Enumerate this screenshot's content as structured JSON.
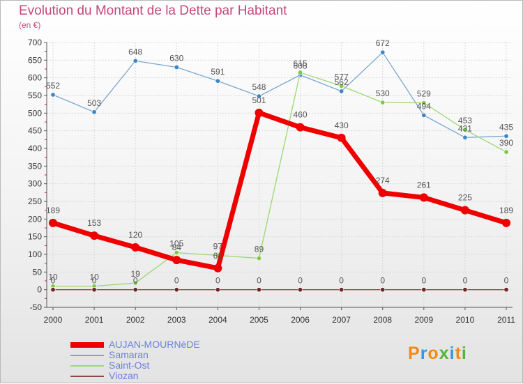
{
  "header": {
    "title": "Evolution du Montant de la Dette par Habitant",
    "subtitle": "(en €)"
  },
  "logo": {
    "text": "Proxiti",
    "letter_colors": [
      "#f08a1c",
      "#2f9ad9",
      "#f08a1c",
      "#55b43a",
      "#2f9ad9",
      "#f08a1c",
      "#55b43a"
    ]
  },
  "chart_data": {
    "type": "line",
    "title": "Evolution du Montant de la Dette par Habitant",
    "subtitle": "(en €)",
    "xlabel": "",
    "ylabel": "",
    "x": [
      "2000",
      "2001",
      "2002",
      "2003",
      "2004",
      "2005",
      "2006",
      "2007",
      "2008",
      "2009",
      "2010",
      "2011"
    ],
    "ylim": [
      -50,
      700
    ],
    "yticks": [
      -50,
      0,
      50,
      100,
      150,
      200,
      250,
      300,
      350,
      400,
      450,
      500,
      550,
      600,
      650,
      700
    ],
    "grid": true,
    "legend_position": "bottom-left",
    "series": [
      {
        "name": "AUJAN-MOURNèDE",
        "color": "#ee0000",
        "marker_color": "#ee0000",
        "label_color": "#555555",
        "bold": true,
        "values": [
          189,
          153,
          120,
          84,
          61,
          501,
          460,
          430,
          274,
          261,
          225,
          189
        ],
        "labels": [
          "189",
          "153",
          "120",
          "84",
          "61",
          "501",
          "460",
          "430",
          "274",
          "261",
          "225",
          "189"
        ]
      },
      {
        "name": "Samaran",
        "color": "#7aa6cf",
        "marker_color": "#3f86c4",
        "label_color": "#555555",
        "bold": false,
        "values": [
          552,
          503,
          648,
          630,
          591,
          548,
          608,
          562,
          672,
          494,
          431,
          435
        ],
        "labels": [
          "552",
          "503",
          "648",
          "630",
          "591",
          "548",
          "608",
          "562",
          "672",
          "494",
          "431",
          "435"
        ]
      },
      {
        "name": "Saint-Ost",
        "color": "#9ad870",
        "marker_color": "#7ccb45",
        "label_color": "#555555",
        "bold": false,
        "values": [
          10,
          10,
          19,
          105,
          97,
          89,
          615,
          577,
          530,
          529,
          453,
          390
        ],
        "labels": [
          "10",
          "10",
          "19",
          "105",
          "97",
          "89",
          "615",
          "577",
          "530",
          "529",
          "453",
          "390"
        ]
      },
      {
        "name": "Viozan",
        "color": "#8a4a4a",
        "marker_color": "#6e2626",
        "label_color": "#555555",
        "bold": false,
        "values": [
          0,
          0,
          0,
          0,
          0,
          0,
          0,
          0,
          0,
          0,
          0,
          0
        ],
        "labels": [
          "0",
          "0",
          "0",
          "0",
          "0",
          "0",
          "0",
          "0",
          "0",
          "0",
          "0",
          "0"
        ]
      }
    ]
  }
}
